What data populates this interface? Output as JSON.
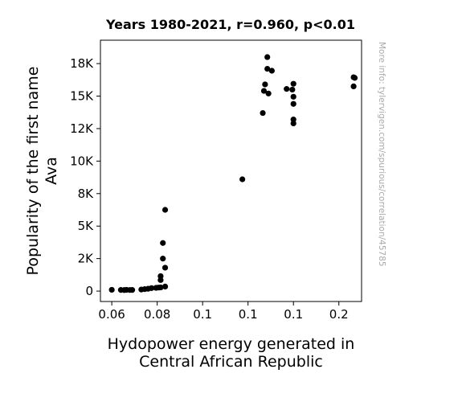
{
  "chart_data": {
    "type": "scatter",
    "title": "Years 1980-2021, r=0.960, p<0.01",
    "xlabel_lines": [
      "Hydopower energy generated in",
      "Central African Republic"
    ],
    "ylabel_lines": [
      "Popularity of the first name",
      "Ava"
    ],
    "side_note": "More info: tylervigen.com/spurious/correlation/45785",
    "x_ticks": [
      {
        "value": 0.06,
        "label": "0.06"
      },
      {
        "value": 0.08,
        "label": "0.08"
      },
      {
        "value": 0.1,
        "label": "0.1"
      },
      {
        "value": 0.12,
        "label": "0.1"
      },
      {
        "value": 0.14,
        "label": "0.1"
      },
      {
        "value": 0.16,
        "label": "0.2"
      }
    ],
    "y_ticks": [
      {
        "value": 0,
        "label": "0"
      },
      {
        "value": 2500,
        "label": "2K"
      },
      {
        "value": 5000,
        "label": "5K"
      },
      {
        "value": 7500,
        "label": "8K"
      },
      {
        "value": 10000,
        "label": "10K"
      },
      {
        "value": 12500,
        "label": "12K"
      },
      {
        "value": 15000,
        "label": "15K"
      },
      {
        "value": 17500,
        "label": "18K"
      }
    ],
    "xlim": [
      0.055,
      0.17
    ],
    "ylim": [
      -800,
      19300
    ],
    "grid": false,
    "marker_color": "#000000",
    "points": [
      {
        "x": 0.06,
        "y": 100
      },
      {
        "x": 0.064,
        "y": 90
      },
      {
        "x": 0.0655,
        "y": 80
      },
      {
        "x": 0.0665,
        "y": 95
      },
      {
        "x": 0.068,
        "y": 85
      },
      {
        "x": 0.069,
        "y": 90
      },
      {
        "x": 0.073,
        "y": 120
      },
      {
        "x": 0.0745,
        "y": 150
      },
      {
        "x": 0.076,
        "y": 180
      },
      {
        "x": 0.0775,
        "y": 230
      },
      {
        "x": 0.0795,
        "y": 250
      },
      {
        "x": 0.0805,
        "y": 270
      },
      {
        "x": 0.0815,
        "y": 280
      },
      {
        "x": 0.0835,
        "y": 350
      },
      {
        "x": 0.0815,
        "y": 850
      },
      {
        "x": 0.0815,
        "y": 1150
      },
      {
        "x": 0.0835,
        "y": 1800
      },
      {
        "x": 0.0825,
        "y": 2500
      },
      {
        "x": 0.0825,
        "y": 3700
      },
      {
        "x": 0.0835,
        "y": 6250
      },
      {
        "x": 0.1175,
        "y": 8600
      },
      {
        "x": 0.1265,
        "y": 13700
      },
      {
        "x": 0.127,
        "y": 15400
      },
      {
        "x": 0.1275,
        "y": 15900
      },
      {
        "x": 0.1285,
        "y": 18000
      },
      {
        "x": 0.1285,
        "y": 17100
      },
      {
        "x": 0.129,
        "y": 15200
      },
      {
        "x": 0.1305,
        "y": 16950
      },
      {
        "x": 0.137,
        "y": 15550
      },
      {
        "x": 0.1395,
        "y": 15500
      },
      {
        "x": 0.14,
        "y": 15950
      },
      {
        "x": 0.14,
        "y": 14950
      },
      {
        "x": 0.14,
        "y": 14400
      },
      {
        "x": 0.14,
        "y": 13200
      },
      {
        "x": 0.14,
        "y": 12900
      },
      {
        "x": 0.1665,
        "y": 16450
      },
      {
        "x": 0.167,
        "y": 16400
      },
      {
        "x": 0.1665,
        "y": 15750
      }
    ]
  }
}
